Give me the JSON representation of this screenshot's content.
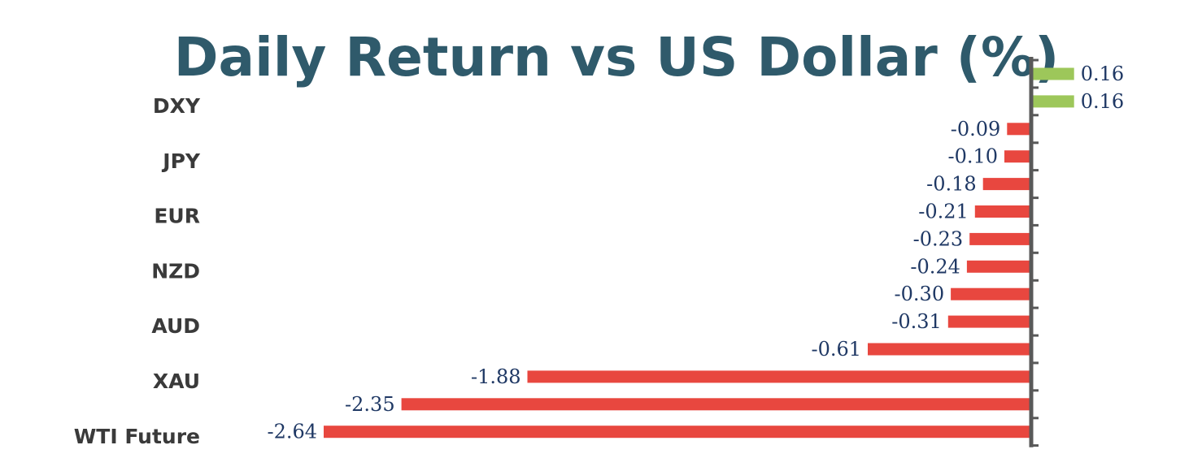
{
  "chart_data": {
    "type": "bar",
    "orientation": "horizontal",
    "title": "Daily Return vs US Dollar (%)",
    "xlabel": "",
    "ylabel": "",
    "categories": [
      "DXY",
      "",
      "JPY",
      "",
      "EUR",
      "",
      "NZD",
      "",
      "AUD",
      "",
      "XAU",
      "",
      "WTI Future",
      ""
    ],
    "values": [
      0.16,
      0.16,
      -0.09,
      -0.1,
      -0.18,
      -0.21,
      -0.23,
      -0.24,
      -0.3,
      -0.31,
      -0.61,
      -1.88,
      -2.35,
      -2.64
    ],
    "value_labels": [
      "0.16",
      "0.16",
      "-0.09",
      "-0.10",
      "-0.18",
      "-0.21",
      "-0.23",
      "-0.24",
      "-0.30",
      "-0.31",
      "-0.61",
      "-1.88",
      "-2.35",
      "-2.64"
    ],
    "xlim": [
      -2.64,
      0.16
    ],
    "grid": false,
    "legend": "none",
    "colors": {
      "positive": "#9dc75a",
      "negative": "#e8473f",
      "axis": "#595959",
      "title": "#2f5a6b",
      "value_text": "#1f3864",
      "category_text": "#3a3a3a"
    }
  }
}
